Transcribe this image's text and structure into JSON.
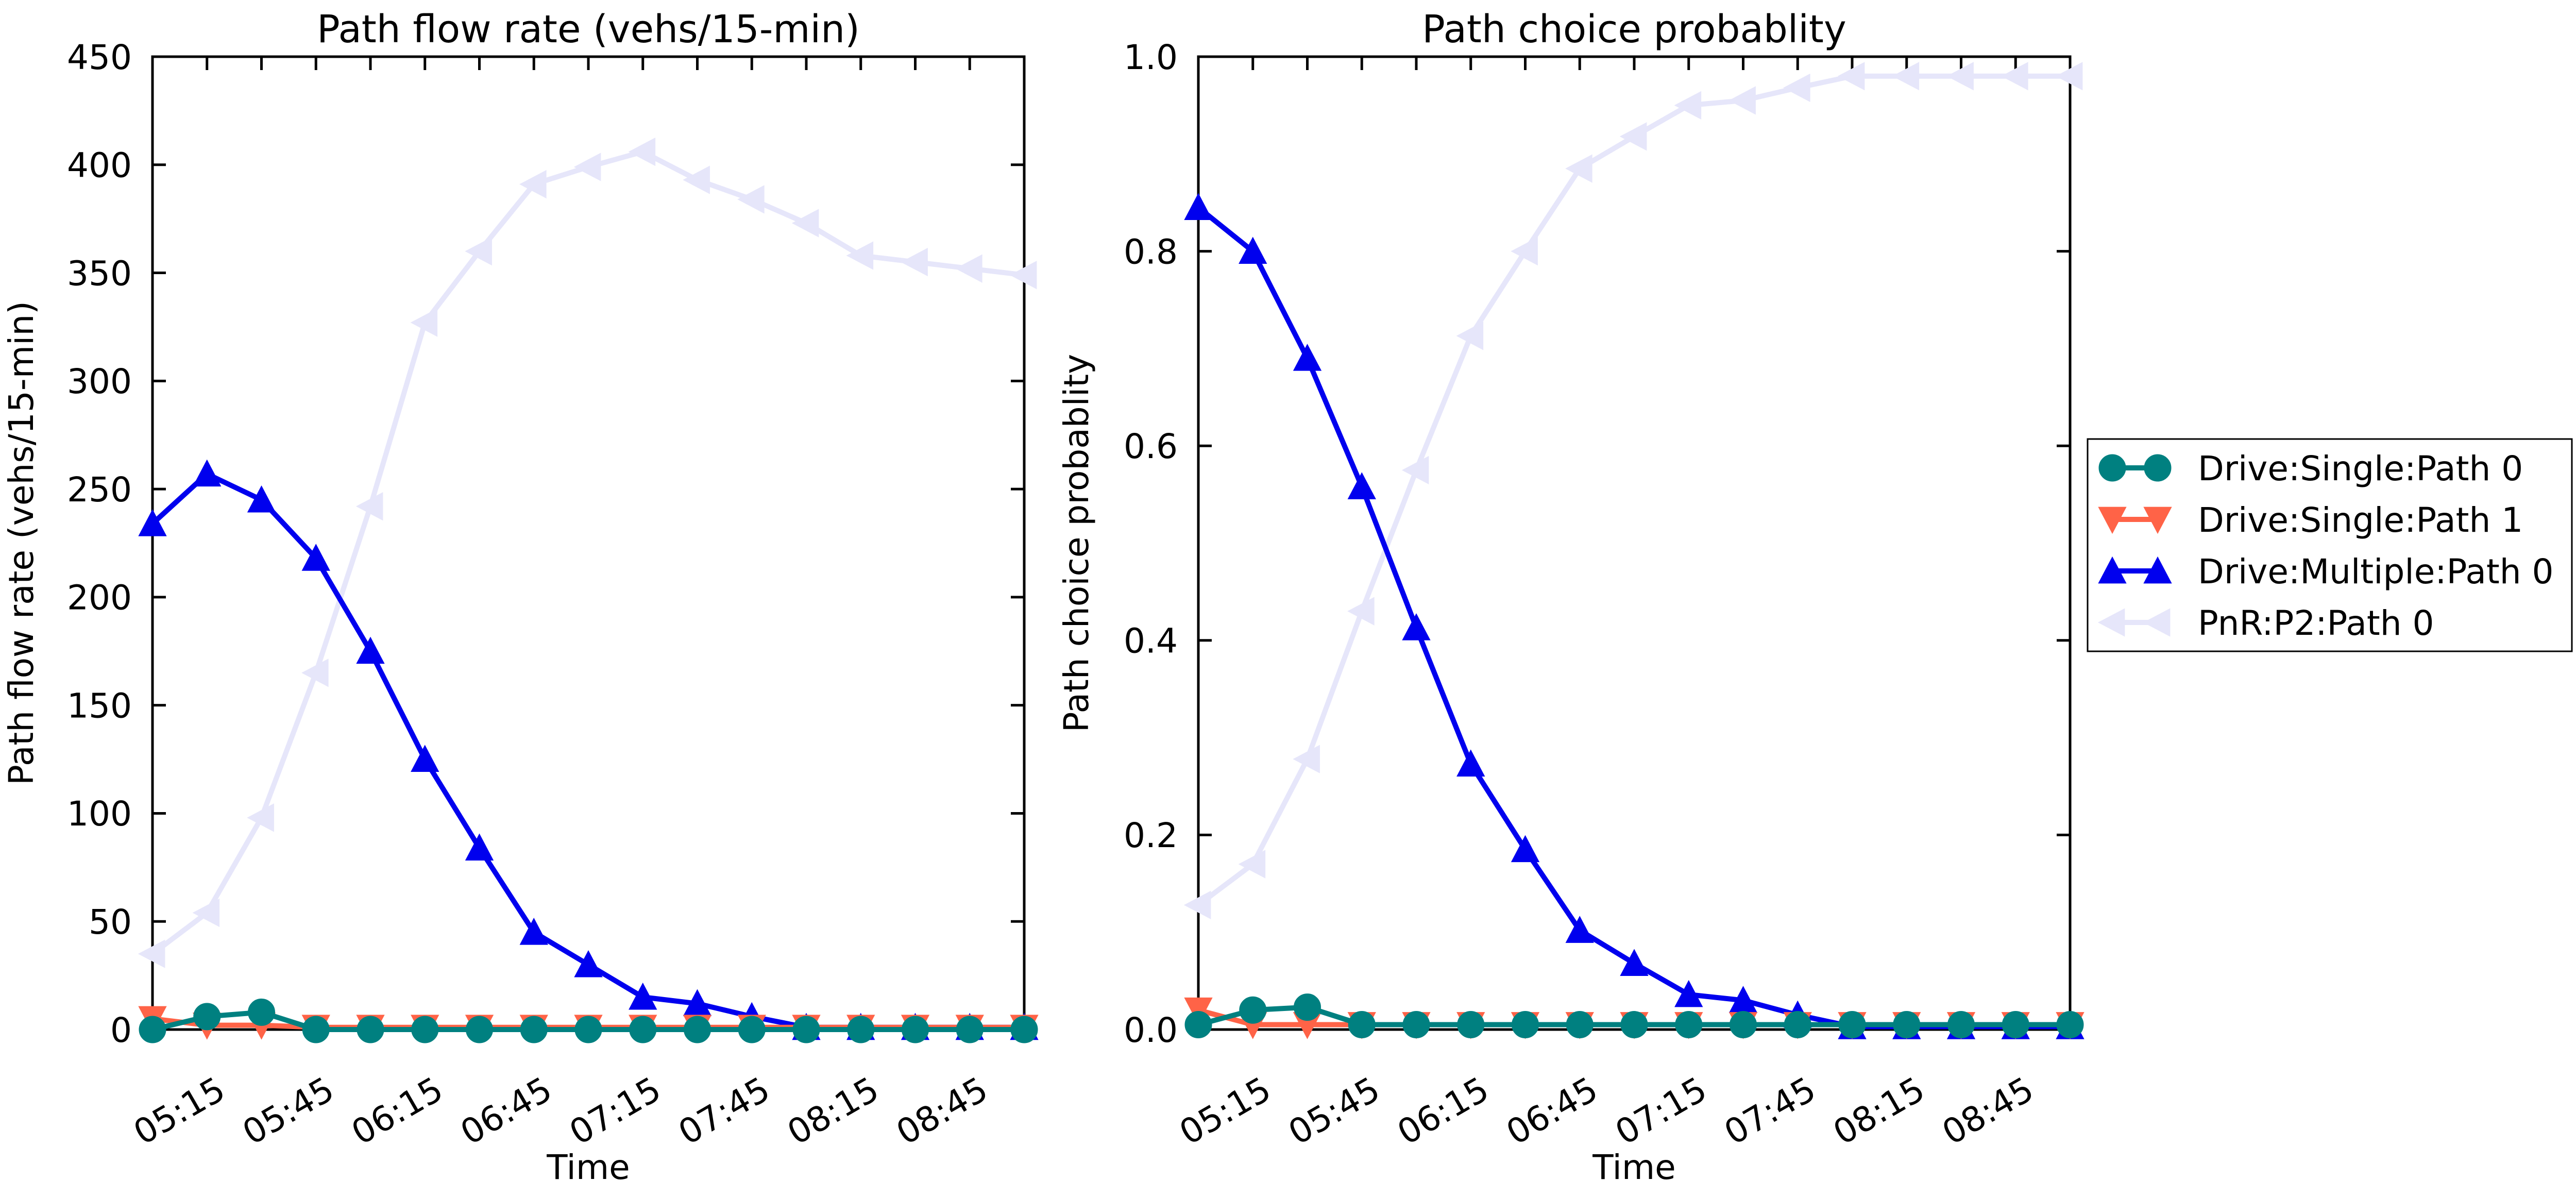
{
  "chart_data": [
    {
      "type": "line",
      "title": "Path flow rate (vehs/15-min)",
      "xlabel": "Time",
      "ylabel": "Path flow rate (vehs/15-min)",
      "x": [
        "05:00",
        "05:15",
        "05:30",
        "05:45",
        "06:00",
        "06:15",
        "06:30",
        "06:45",
        "07:00",
        "07:15",
        "07:30",
        "07:45",
        "08:00",
        "08:15",
        "08:30",
        "08:45",
        "09:00"
      ],
      "xtick_labels": [
        "05:15",
        "05:45",
        "06:15",
        "06:45",
        "07:15",
        "07:45",
        "08:15",
        "08:45"
      ],
      "ylim": [
        0,
        450
      ],
      "yticks": [
        "0",
        "50",
        "100",
        "150",
        "200",
        "250",
        "300",
        "350",
        "400",
        "450"
      ],
      "grid": false,
      "series": [
        {
          "name": "Drive:Single:Path 0",
          "color": "#008080",
          "marker": "circle",
          "values": [
            0,
            6,
            8,
            0,
            0,
            0,
            0,
            0,
            0,
            0,
            0,
            0,
            0,
            0,
            0,
            0,
            0
          ]
        },
        {
          "name": "Drive:Single:Path 1",
          "color": "#ff6347",
          "marker": "triangle-down",
          "values": [
            5,
            2,
            2,
            1,
            1,
            1,
            1,
            1,
            1,
            1,
            1,
            1,
            1,
            1,
            1,
            1,
            1
          ]
        },
        {
          "name": "Drive:Multiple:Path 0",
          "color": "#0000ee",
          "marker": "triangle-up",
          "values": [
            234,
            257,
            245,
            218,
            175,
            125,
            84,
            45,
            30,
            15,
            12,
            6,
            1,
            1,
            1,
            1,
            1
          ]
        },
        {
          "name": "PnR:P2:Path 0",
          "color": "#e6e6fa",
          "marker": "triangle-left",
          "values": [
            35,
            54,
            98,
            165,
            242,
            327,
            360,
            391,
            399,
            406,
            393,
            384,
            373,
            358,
            355,
            352,
            349
          ]
        }
      ]
    },
    {
      "type": "line",
      "title": "Path choice probablity",
      "xlabel": "Time",
      "ylabel": "Path choice probablity",
      "x": [
        "05:00",
        "05:15",
        "05:30",
        "05:45",
        "06:00",
        "06:15",
        "06:30",
        "06:45",
        "07:00",
        "07:15",
        "07:30",
        "07:45",
        "08:00",
        "08:15",
        "08:30",
        "08:45",
        "09:00"
      ],
      "xtick_labels": [
        "05:15",
        "05:45",
        "06:15",
        "06:45",
        "07:15",
        "07:45",
        "08:15",
        "08:45"
      ],
      "ylim": [
        0,
        1.0
      ],
      "yticks": [
        "0.0",
        "0.2",
        "0.4",
        "0.6",
        "0.8",
        "1.0"
      ],
      "grid": false,
      "series": [
        {
          "name": "Drive:Single:Path 0",
          "color": "#008080",
          "marker": "circle",
          "values": [
            0.005,
            0.02,
            0.023,
            0.005,
            0.005,
            0.005,
            0.005,
            0.005,
            0.005,
            0.005,
            0.005,
            0.005,
            0.005,
            0.005,
            0.005,
            0.005,
            0.005
          ]
        },
        {
          "name": "Drive:Single:Path 1",
          "color": "#ff6347",
          "marker": "triangle-down",
          "values": [
            0.02,
            0.005,
            0.005,
            0.005,
            0.005,
            0.005,
            0.005,
            0.005,
            0.005,
            0.005,
            0.005,
            0.005,
            0.005,
            0.005,
            0.005,
            0.005,
            0.005
          ]
        },
        {
          "name": "Drive:Multiple:Path 0",
          "color": "#0000ee",
          "marker": "triangle-up",
          "values": [
            0.845,
            0.8,
            0.69,
            0.558,
            0.413,
            0.273,
            0.185,
            0.102,
            0.068,
            0.036,
            0.03,
            0.015,
            0.003,
            0.003,
            0.003,
            0.003,
            0.003
          ]
        },
        {
          "name": "PnR:P2:Path 0",
          "color": "#e6e6fa",
          "marker": "triangle-left",
          "values": [
            0.128,
            0.17,
            0.278,
            0.43,
            0.575,
            0.713,
            0.8,
            0.885,
            0.918,
            0.95,
            0.955,
            0.968,
            0.98,
            0.98,
            0.98,
            0.98,
            0.98
          ]
        }
      ]
    }
  ],
  "legend": {
    "placement": "right",
    "entries": [
      "Drive:Single:Path 0",
      "Drive:Single:Path 1",
      "Drive:Multiple:Path 0",
      "PnR:P2:Path 0"
    ]
  }
}
